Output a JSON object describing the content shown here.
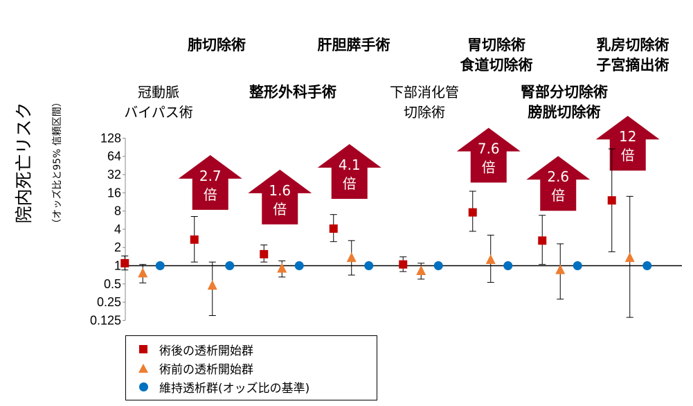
{
  "chart_data": {
    "type": "scatter",
    "y_scale": "log2",
    "ylim": [
      0.125,
      128
    ],
    "yticks": [
      "128",
      "64",
      "32",
      "16",
      "8",
      "4",
      "2",
      "1",
      "0.5",
      "0.25",
      "0.125"
    ],
    "ytick_values": [
      128,
      64,
      32,
      16,
      8,
      4,
      2,
      1,
      0.5,
      0.25,
      0.125
    ],
    "reference_line": 1,
    "ylabel": "院内死亡リスク",
    "ylabel_sub": "（オッズ比と95% 信頼区間）",
    "categories": [
      {
        "label": "冠動脈\nバイパス術",
        "bold": false
      },
      {
        "label": "肺切除術",
        "bold": true
      },
      {
        "label": "整形外科手術",
        "bold": true
      },
      {
        "label": "肝胆膵手術",
        "bold": true
      },
      {
        "label": "下部消化管\n切除術",
        "bold": false
      },
      {
        "label": "胃切除術\n食道切除術",
        "bold": true
      },
      {
        "label": "腎部分切除術\n膀胱切除術",
        "bold": true
      },
      {
        "label": "乳房切除術\n子宮摘出術",
        "bold": true
      }
    ],
    "series": [
      {
        "name": "術後の透析開始群",
        "marker": "square",
        "color": "#C00000",
        "values": [
          1.1,
          2.7,
          1.55,
          4.1,
          1.05,
          7.6,
          2.6,
          12
        ],
        "ci_low": [
          0.85,
          1.15,
          1.15,
          2.5,
          0.8,
          3.7,
          1.05,
          1.7
        ],
        "ci_high": [
          1.45,
          6.5,
          2.2,
          7,
          1.4,
          17,
          6.8,
          85
        ]
      },
      {
        "name": "術前の透析開始群",
        "marker": "triangle",
        "color": "#ED7D31",
        "values": [
          0.75,
          0.47,
          0.9,
          1.35,
          0.82,
          1.25,
          0.85,
          1.35
        ],
        "ci_low": [
          0.52,
          0.15,
          0.65,
          0.7,
          0.6,
          0.53,
          0.28,
          0.14
        ],
        "ci_high": [
          1.05,
          1.15,
          1.2,
          2.6,
          1.1,
          3.2,
          2.3,
          14
        ]
      },
      {
        "name": "維持透析群(オッズ比の基準)",
        "marker": "circle",
        "color": "#0070C0",
        "values": [
          1,
          1,
          1,
          1,
          1,
          1,
          1,
          1
        ]
      }
    ],
    "annotations": [
      {
        "category": 1,
        "text": "2.7",
        "suffix": "倍"
      },
      {
        "category": 2,
        "text": "1.6",
        "suffix": "倍"
      },
      {
        "category": 3,
        "text": "4.1",
        "suffix": "倍"
      },
      {
        "category": 5,
        "text": "7.6",
        "suffix": "倍"
      },
      {
        "category": 6,
        "text": "2.6",
        "suffix": "倍"
      },
      {
        "category": 7,
        "text": "12",
        "suffix": "倍"
      }
    ],
    "arrow_color": "#A50021",
    "legend_position": "bottom-left"
  }
}
